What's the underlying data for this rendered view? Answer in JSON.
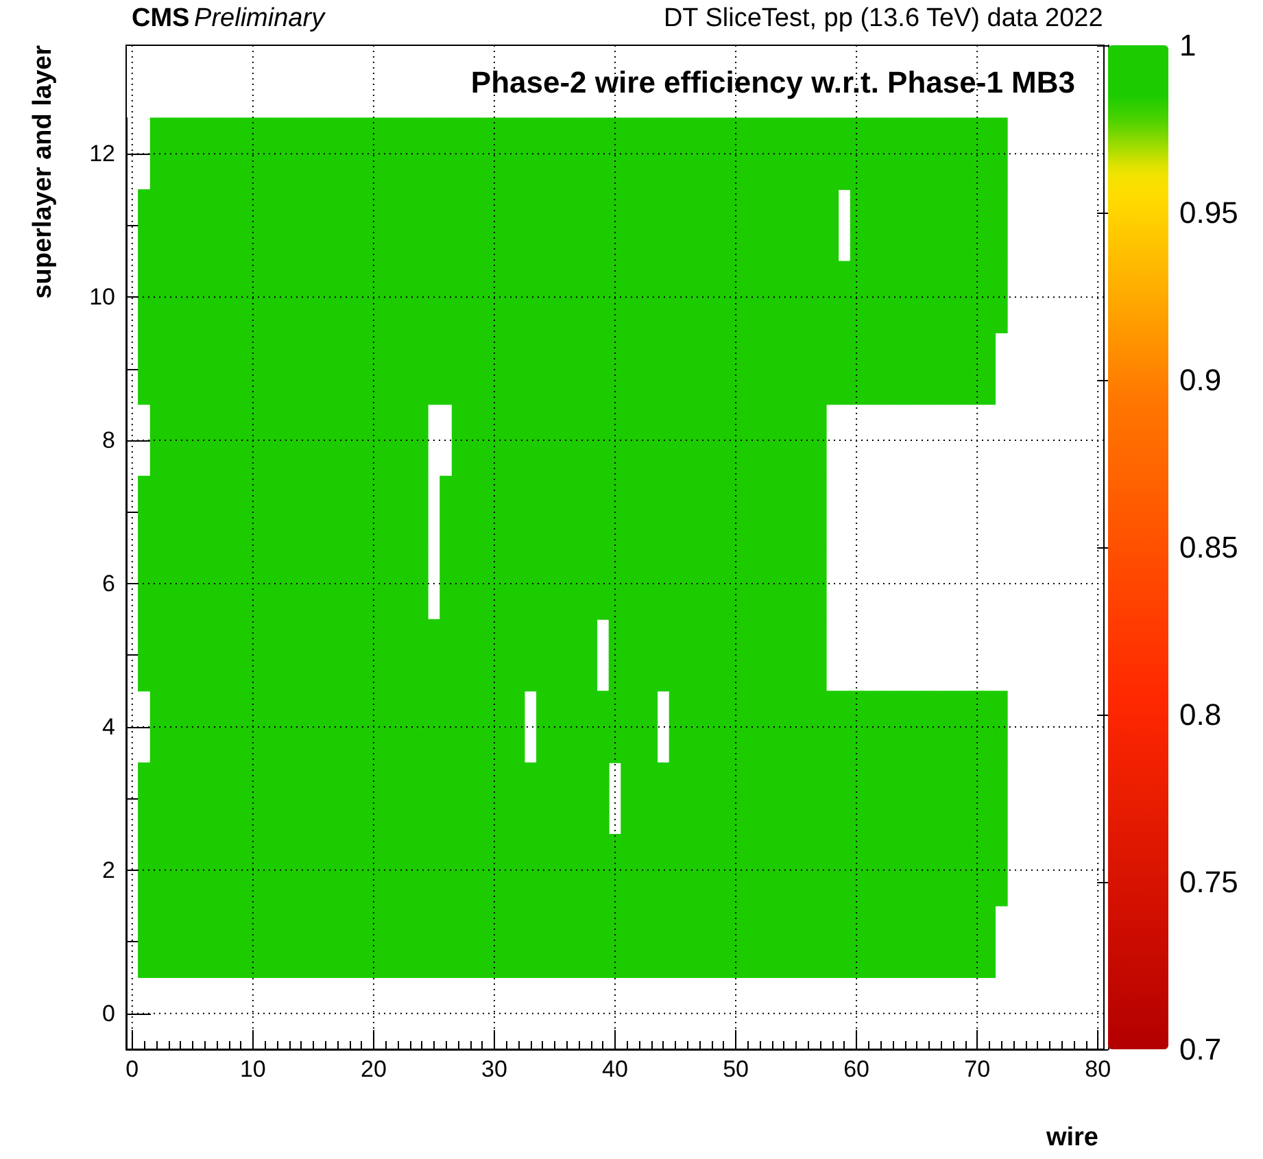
{
  "chart_data": {
    "type": "heatmap",
    "title": "Phase-2 wire efficiency w.r.t. Phase-1 MB3",
    "xlabel": "wire",
    "ylabel": "superlayer and layer",
    "annotations": [
      "CMS Preliminary",
      "DT SliceTest, pp (13.6 TeV) data 2022"
    ],
    "categories": [
      "0",
      null,
      null,
      null,
      null,
      null,
      null,
      null,
      null,
      null,
      "10",
      null,
      null,
      null,
      null,
      null,
      null,
      null,
      null,
      null,
      "20",
      null,
      null,
      null,
      null,
      null,
      null,
      null,
      null,
      null,
      "30",
      null,
      null,
      null,
      null,
      null,
      null,
      null,
      null,
      null,
      "40",
      null,
      null,
      null,
      null,
      null,
      null,
      null,
      null,
      null,
      "50",
      null,
      null,
      null,
      null,
      null,
      null,
      null,
      null,
      null,
      "60",
      null,
      null,
      null,
      null,
      null,
      null,
      null,
      null,
      null,
      "70",
      null,
      null,
      null,
      null,
      null,
      null,
      null,
      null,
      null,
      "80"
    ],
    "y_categories": [
      "12",
      null,
      "10",
      null,
      "8",
      null,
      "6",
      null,
      "4",
      null,
      "2",
      null,
      "0"
    ],
    "cells": [
      [
        null,
        null,
        1,
        1,
        1,
        1,
        1,
        1,
        1,
        1,
        1,
        1,
        1,
        1,
        1,
        1,
        1,
        1,
        1,
        1,
        1,
        1,
        1,
        1,
        1,
        1,
        1,
        1,
        1,
        1,
        1,
        1,
        1,
        1,
        1,
        1,
        1,
        1,
        1,
        1,
        1,
        1,
        1,
        1,
        1,
        1,
        1,
        1,
        1,
        1,
        1,
        1,
        1,
        1,
        1,
        1,
        1,
        1,
        1,
        1,
        1,
        1,
        1,
        1,
        1,
        1,
        1,
        1,
        1,
        1,
        1,
        1,
        1,
        null,
        null,
        null,
        null,
        null,
        null,
        null,
        null
      ],
      [
        null,
        1,
        1,
        1,
        1,
        1,
        1,
        1,
        1,
        1,
        1,
        1,
        1,
        1,
        1,
        1,
        1,
        1,
        1,
        1,
        1,
        1,
        1,
        1,
        1,
        1,
        1,
        1,
        1,
        1,
        1,
        1,
        1,
        1,
        1,
        1,
        1,
        1,
        1,
        1,
        1,
        1,
        1,
        1,
        1,
        1,
        1,
        1,
        1,
        1,
        1,
        1,
        1,
        1,
        1,
        1,
        1,
        1,
        1,
        null,
        1,
        1,
        1,
        1,
        1,
        1,
        1,
        1,
        1,
        1,
        1,
        1,
        1,
        null,
        null,
        null,
        null,
        null,
        null,
        null,
        null
      ],
      [
        null,
        1,
        1,
        1,
        1,
        1,
        1,
        1,
        1,
        1,
        1,
        1,
        1,
        1,
        1,
        1,
        1,
        1,
        1,
        1,
        1,
        1,
        1,
        1,
        1,
        1,
        1,
        1,
        1,
        1,
        1,
        1,
        1,
        1,
        1,
        1,
        1,
        1,
        1,
        1,
        1,
        1,
        1,
        1,
        1,
        1,
        1,
        1,
        1,
        1,
        1,
        1,
        1,
        1,
        1,
        1,
        1,
        1,
        1,
        1,
        1,
        1,
        1,
        1,
        1,
        1,
        1,
        1,
        1,
        1,
        1,
        1,
        1,
        null,
        null,
        null,
        null,
        null,
        null,
        null,
        null
      ],
      [
        null,
        1,
        1,
        1,
        1,
        1,
        1,
        1,
        1,
        1,
        1,
        1,
        1,
        1,
        1,
        1,
        1,
        1,
        1,
        1,
        1,
        1,
        1,
        1,
        1,
        1,
        1,
        1,
        1,
        1,
        1,
        1,
        1,
        1,
        1,
        1,
        1,
        1,
        1,
        1,
        1,
        1,
        1,
        1,
        1,
        1,
        1,
        1,
        1,
        1,
        1,
        1,
        1,
        1,
        1,
        1,
        1,
        1,
        1,
        1,
        1,
        1,
        1,
        1,
        1,
        1,
        1,
        1,
        1,
        1,
        1,
        1,
        null,
        null,
        null,
        null,
        null,
        null,
        null,
        null,
        null
      ],
      [
        null,
        null,
        1,
        1,
        1,
        1,
        1,
        1,
        1,
        1,
        1,
        1,
        1,
        1,
        1,
        1,
        1,
        1,
        1,
        1,
        1,
        1,
        1,
        1,
        1,
        null,
        null,
        1,
        1,
        1,
        1,
        1,
        1,
        1,
        1,
        1,
        1,
        1,
        1,
        1,
        1,
        1,
        1,
        1,
        1,
        1,
        1,
        1,
        1,
        1,
        1,
        1,
        1,
        1,
        1,
        1,
        1,
        1,
        null,
        null,
        null,
        null,
        null,
        null,
        null,
        null,
        null,
        null,
        null,
        null,
        null,
        null,
        null,
        null,
        null,
        null,
        null,
        null,
        null,
        null,
        null
      ],
      [
        null,
        1,
        1,
        1,
        1,
        1,
        1,
        1,
        1,
        1,
        1,
        1,
        1,
        1,
        1,
        1,
        1,
        1,
        1,
        1,
        1,
        1,
        1,
        1,
        1,
        null,
        1,
        1,
        1,
        1,
        1,
        1,
        1,
        1,
        1,
        1,
        1,
        1,
        1,
        1,
        1,
        1,
        1,
        1,
        1,
        1,
        1,
        1,
        1,
        1,
        1,
        1,
        1,
        1,
        1,
        1,
        1,
        1,
        null,
        null,
        null,
        null,
        null,
        null,
        null,
        null,
        null,
        null,
        null,
        null,
        null,
        null,
        null,
        null,
        null,
        null,
        null,
        null,
        null,
        null,
        null
      ],
      [
        null,
        1,
        1,
        1,
        1,
        1,
        1,
        1,
        1,
        1,
        1,
        1,
        1,
        1,
        1,
        1,
        1,
        1,
        1,
        1,
        1,
        1,
        1,
        1,
        1,
        null,
        1,
        1,
        1,
        1,
        1,
        1,
        1,
        1,
        1,
        1,
        1,
        1,
        1,
        1,
        1,
        1,
        1,
        1,
        1,
        1,
        1,
        1,
        1,
        1,
        1,
        1,
        1,
        1,
        1,
        1,
        1,
        1,
        null,
        null,
        null,
        null,
        null,
        null,
        null,
        null,
        null,
        null,
        null,
        null,
        null,
        null,
        null,
        null,
        null,
        null,
        null,
        null,
        null,
        null,
        null
      ],
      [
        null,
        1,
        1,
        1,
        1,
        1,
        1,
        1,
        1,
        1,
        1,
        1,
        1,
        1,
        1,
        1,
        1,
        1,
        1,
        1,
        1,
        1,
        1,
        1,
        1,
        1,
        1,
        1,
        1,
        1,
        1,
        1,
        1,
        1,
        1,
        1,
        1,
        1,
        1,
        null,
        1,
        1,
        1,
        1,
        1,
        1,
        1,
        1,
        1,
        1,
        1,
        1,
        1,
        1,
        1,
        1,
        1,
        1,
        null,
        null,
        null,
        null,
        null,
        null,
        null,
        null,
        null,
        null,
        null,
        null,
        null,
        null,
        null,
        null,
        null,
        null,
        null,
        null,
        null,
        null,
        null
      ],
      [
        null,
        null,
        1,
        1,
        1,
        1,
        1,
        1,
        1,
        1,
        1,
        1,
        1,
        1,
        1,
        1,
        1,
        1,
        1,
        1,
        1,
        1,
        1,
        1,
        1,
        1,
        1,
        1,
        1,
        1,
        1,
        1,
        1,
        null,
        1,
        1,
        1,
        1,
        1,
        1,
        1,
        1,
        1,
        1,
        null,
        1,
        1,
        1,
        1,
        1,
        1,
        1,
        1,
        1,
        1,
        1,
        1,
        1,
        1,
        1,
        1,
        1,
        1,
        1,
        1,
        1,
        1,
        1,
        1,
        1,
        1,
        1,
        1,
        null,
        null,
        null,
        null,
        null,
        null,
        null,
        null
      ],
      [
        null,
        1,
        1,
        1,
        1,
        1,
        1,
        1,
        1,
        1,
        1,
        1,
        1,
        1,
        1,
        1,
        1,
        1,
        1,
        1,
        1,
        1,
        1,
        1,
        1,
        1,
        1,
        1,
        1,
        1,
        1,
        1,
        1,
        1,
        1,
        1,
        1,
        1,
        1,
        1,
        null,
        1,
        1,
        1,
        1,
        1,
        1,
        1,
        1,
        1,
        1,
        1,
        1,
        1,
        1,
        1,
        1,
        1,
        1,
        1,
        1,
        1,
        1,
        1,
        1,
        1,
        1,
        1,
        1,
        1,
        1,
        1,
        1,
        null,
        null,
        null,
        null,
        null,
        null,
        null,
        null
      ],
      [
        null,
        1,
        1,
        1,
        1,
        1,
        1,
        1,
        1,
        1,
        1,
        1,
        1,
        1,
        1,
        1,
        1,
        1,
        1,
        1,
        1,
        1,
        1,
        1,
        1,
        1,
        1,
        1,
        1,
        1,
        1,
        1,
        1,
        1,
        1,
        1,
        1,
        1,
        1,
        1,
        1,
        1,
        1,
        1,
        1,
        1,
        1,
        1,
        1,
        1,
        1,
        1,
        1,
        1,
        1,
        1,
        1,
        1,
        1,
        1,
        1,
        1,
        1,
        1,
        1,
        1,
        1,
        1,
        1,
        1,
        1,
        1,
        1,
        null,
        null,
        null,
        null,
        null,
        null,
        null,
        null
      ],
      [
        null,
        1,
        1,
        1,
        1,
        1,
        1,
        1,
        1,
        1,
        1,
        1,
        1,
        1,
        1,
        1,
        1,
        1,
        1,
        1,
        1,
        1,
        1,
        1,
        1,
        1,
        1,
        1,
        1,
        1,
        1,
        1,
        1,
        1,
        1,
        1,
        1,
        1,
        1,
        1,
        1,
        1,
        1,
        1,
        1,
        1,
        1,
        1,
        1,
        1,
        1,
        1,
        1,
        1,
        1,
        1,
        1,
        1,
        1,
        1,
        1,
        1,
        1,
        1,
        1,
        1,
        1,
        1,
        1,
        1,
        1,
        1,
        null,
        null,
        null,
        null,
        null,
        null,
        null,
        null,
        null
      ],
      [
        null,
        null,
        null,
        null,
        null,
        null,
        null,
        null,
        null,
        null,
        null,
        null,
        null,
        null,
        null,
        null,
        null,
        null,
        null,
        null,
        null,
        null,
        null,
        null,
        null,
        null,
        null,
        null,
        null,
        null,
        null,
        null,
        null,
        null,
        null,
        null,
        null,
        null,
        null,
        null,
        null,
        null,
        null,
        null,
        null,
        null,
        null,
        null,
        null,
        null,
        null,
        null,
        null,
        null,
        null,
        null,
        null,
        null,
        null,
        null,
        null,
        null,
        null,
        null,
        null,
        null,
        null,
        null,
        null,
        null,
        null,
        null,
        null,
        null,
        null,
        null,
        null,
        null,
        null,
        null,
        null
      ]
    ],
    "clim": [
      0.7,
      1
    ],
    "cticks": [
      0.7,
      0.75,
      0.8,
      0.85,
      0.9,
      0.95,
      1
    ],
    "grid": true
  }
}
